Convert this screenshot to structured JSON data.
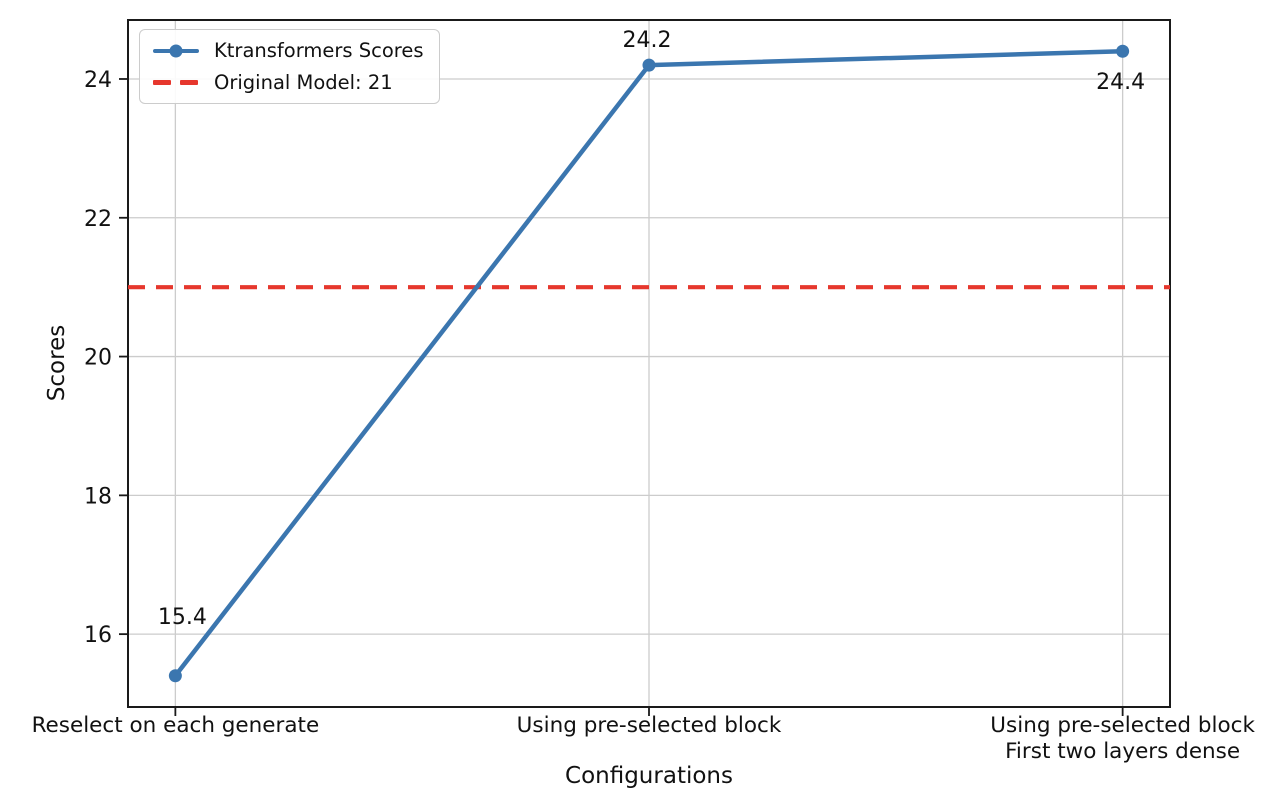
{
  "chart_data": {
    "type": "line",
    "title": "",
    "xlabel": "Configurations",
    "ylabel": "Scores",
    "categories": [
      "Reselect on each generate",
      "Using pre-selected block",
      "Using pre-selected block\nFirst two layers dense"
    ],
    "series": [
      {
        "name": "Ktransformers Scores",
        "values": [
          15.4,
          24.2,
          24.4
        ],
        "color": "#3b76af",
        "marker": "circle"
      }
    ],
    "point_labels": [
      "15.4",
      "24.2",
      "24.4"
    ],
    "reference_line": {
      "label": "Original Model: 21",
      "value": 21,
      "color": "#e6372d",
      "style": "dashed"
    },
    "y_ticks": [
      "16",
      "18",
      "20",
      "22",
      "24"
    ],
    "y_tick_values": [
      16,
      18,
      20,
      22,
      24
    ],
    "ylim": [
      14.95,
      24.85
    ],
    "grid": true,
    "legend_position": "upper left",
    "colors": {
      "grid": "#cccccc",
      "spine": "#1a1a1a",
      "text": "#111111"
    }
  }
}
